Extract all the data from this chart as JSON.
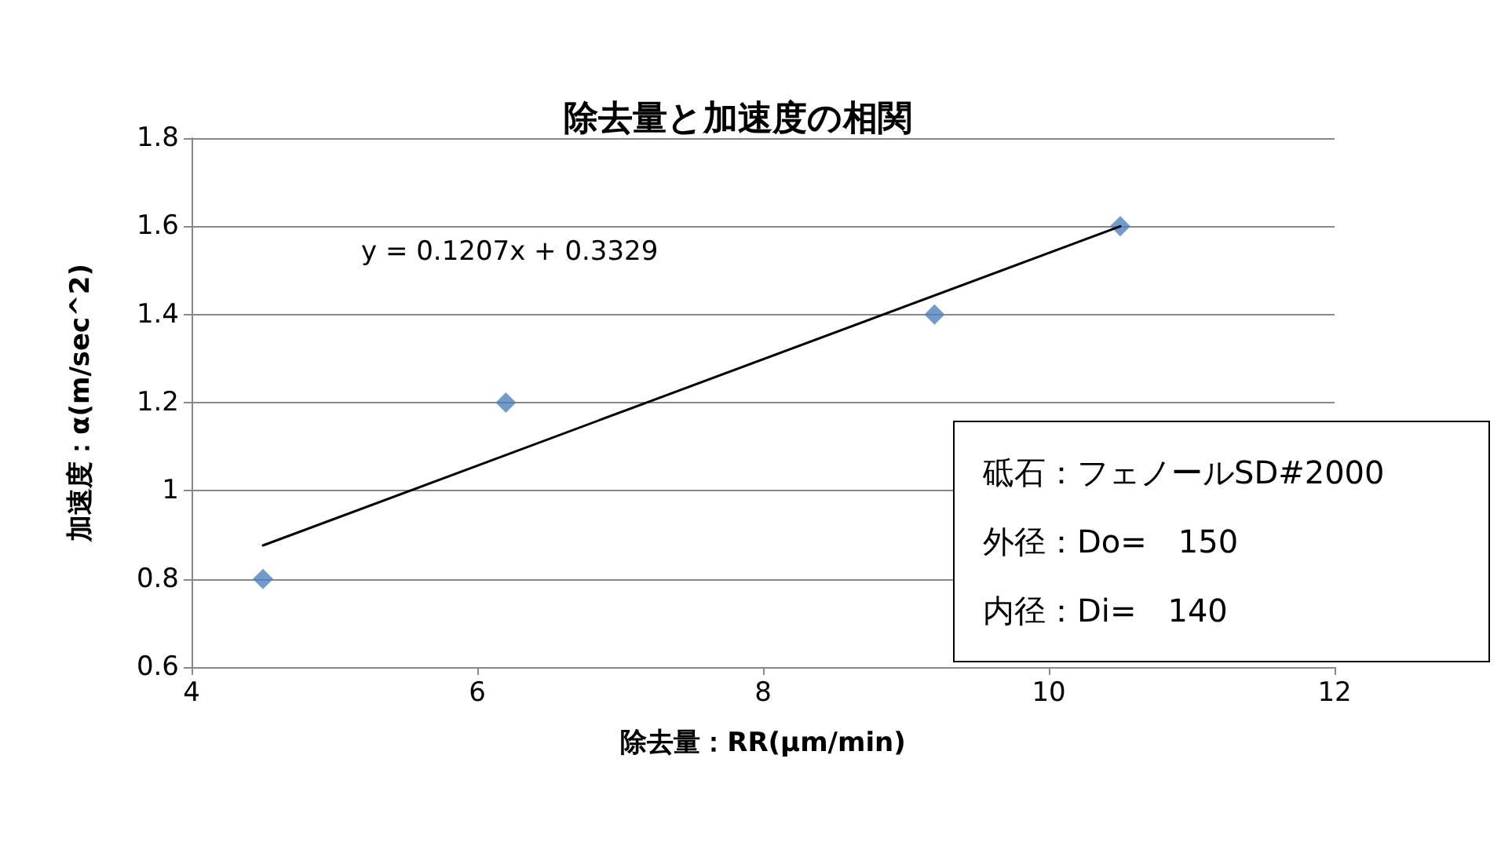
{
  "chart_data": {
    "type": "scatter",
    "title": "除去量と加速度の相関",
    "xlabel": "除去量：RR(μm/min)",
    "ylabel": "加速度：α(m/sec^2)",
    "x": [
      4.5,
      6.2,
      9.2,
      10.5
    ],
    "series": [
      {
        "color": "#4f81bd",
        "marker": "diamond",
        "values": [
          0.8,
          1.2,
          1.4,
          1.6
        ]
      },
      {
        "type": "line",
        "color": "#000000",
        "marker": "none",
        "x": [
          4.5,
          10.5
        ],
        "values": [
          0.876,
          1.6
        ]
      }
    ],
    "xlim": [
      4,
      12
    ],
    "xticks": [
      4,
      6,
      8,
      10,
      12
    ],
    "ylim": [
      0.6,
      1.8
    ],
    "yticks": [
      0.6,
      0.8,
      1,
      1.2,
      1.4,
      1.6,
      1.8
    ],
    "grid": "y",
    "annotations": [
      "y = 0.1207x + 0.3329",
      "砥石：フェノールSD#2000",
      "外径：Do=　150",
      "内径：Di=　140"
    ]
  }
}
